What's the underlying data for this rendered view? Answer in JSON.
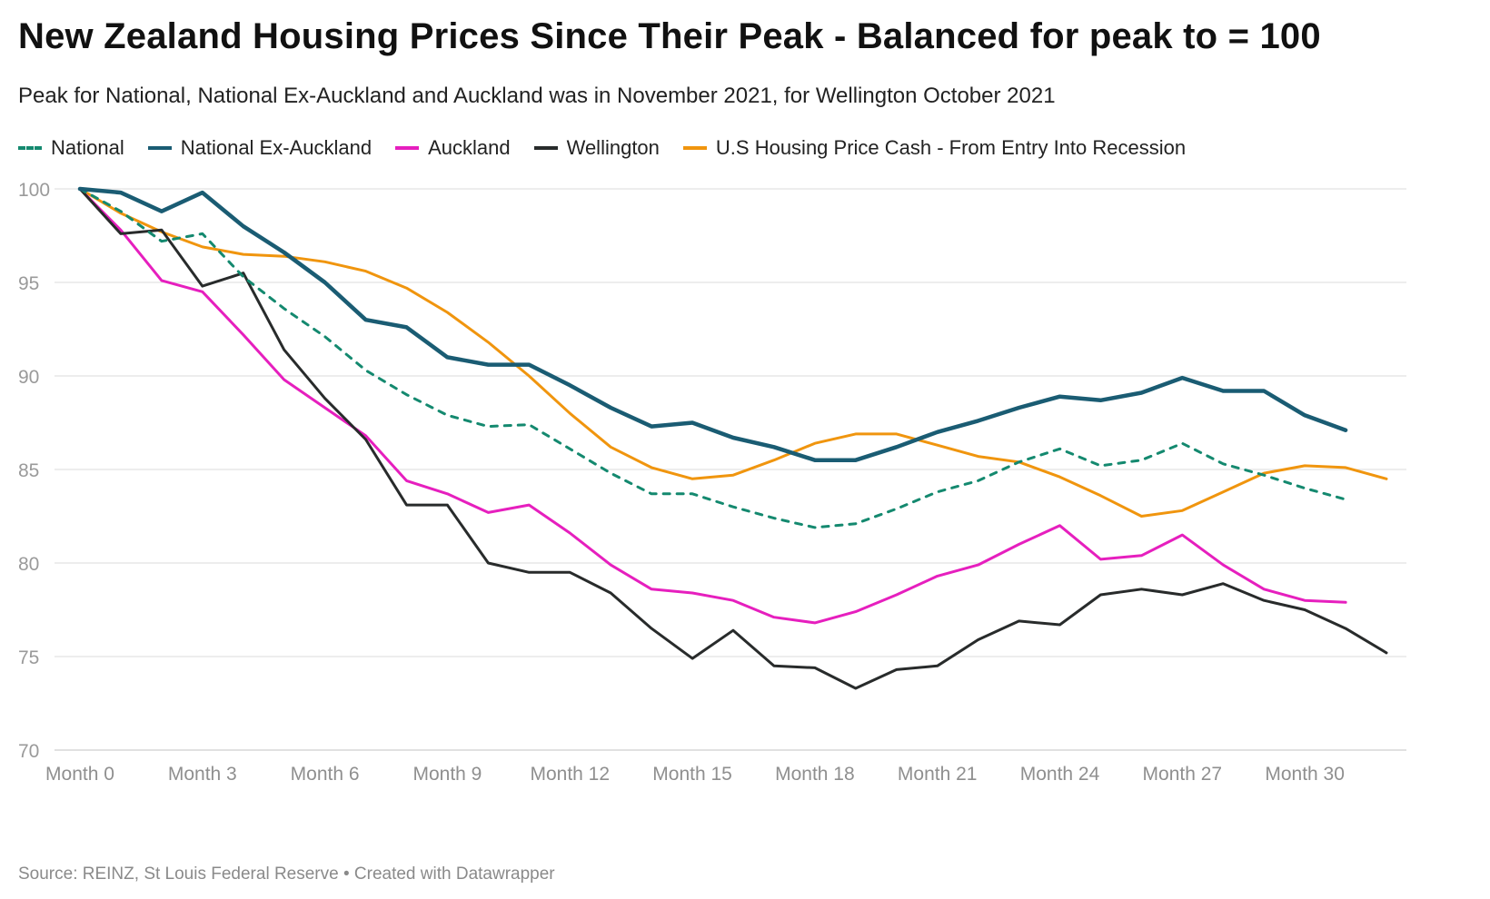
{
  "title": "New Zealand Housing Prices Since Their Peak - Balanced for peak to = 100",
  "subtitle": "Peak for National, National Ex-Auckland and Auckland was in November 2021, for Wellington October 2021",
  "source": "Source: REINZ, St Louis Federal Reserve • Created with Datawrapper",
  "chart_data": {
    "type": "line",
    "xlabel": "",
    "ylabel": "",
    "ylim": [
      70,
      100
    ],
    "yticks": [
      70,
      75,
      80,
      85,
      90,
      95,
      100
    ],
    "x": [
      0,
      1,
      2,
      3,
      4,
      5,
      6,
      7,
      8,
      9,
      10,
      11,
      12,
      13,
      14,
      15,
      16,
      17,
      18,
      19,
      20,
      21,
      22,
      23,
      24,
      25,
      26,
      27,
      28,
      29,
      30,
      31,
      32
    ],
    "xlim": [
      0,
      32
    ],
    "xticks": [
      {
        "x": 0,
        "label": "Month 0"
      },
      {
        "x": 3,
        "label": "Month 3"
      },
      {
        "x": 6,
        "label": "Month 6"
      },
      {
        "x": 9,
        "label": "Month 9"
      },
      {
        "x": 12,
        "label": "Month 12"
      },
      {
        "x": 15,
        "label": "Month 15"
      },
      {
        "x": 18,
        "label": "Month 18"
      },
      {
        "x": 21,
        "label": "Month 21"
      },
      {
        "x": 24,
        "label": "Month 24"
      },
      {
        "x": 27,
        "label": "Month 27"
      },
      {
        "x": 30,
        "label": "Month 30"
      }
    ],
    "grid": true,
    "legend_position": "top-left",
    "series": [
      {
        "name": "National",
        "color": "#14896f",
        "style": "dashed",
        "values": [
          100,
          98.8,
          97.2,
          97.6,
          95.3,
          93.6,
          92.1,
          90.3,
          89.0,
          87.9,
          87.3,
          87.4,
          86.1,
          84.8,
          83.7,
          83.7,
          83.0,
          82.4,
          81.9,
          82.1,
          82.9,
          83.8,
          84.4,
          85.4,
          86.1,
          85.2,
          85.5,
          86.4,
          85.3,
          84.7,
          84.0,
          83.4,
          null
        ]
      },
      {
        "name": "National Ex-Auckland",
        "color": "#1a5c73",
        "style": "solid",
        "values": [
          100,
          99.8,
          98.8,
          99.8,
          98.0,
          96.6,
          95.0,
          93.0,
          92.6,
          91.0,
          90.6,
          90.6,
          89.5,
          88.3,
          87.3,
          87.5,
          86.7,
          86.2,
          85.5,
          85.5,
          86.2,
          87.0,
          87.6,
          88.3,
          88.9,
          88.7,
          89.1,
          89.9,
          89.2,
          89.2,
          87.9,
          87.1,
          null
        ]
      },
      {
        "name": "Auckland",
        "color": "#e61fbe",
        "style": "solid",
        "values": [
          100,
          97.8,
          95.1,
          94.5,
          92.2,
          89.8,
          88.3,
          86.8,
          84.4,
          83.7,
          82.7,
          83.1,
          81.6,
          79.9,
          78.6,
          78.4,
          78.0,
          77.1,
          76.8,
          77.4,
          78.3,
          79.3,
          79.9,
          81.0,
          82.0,
          80.2,
          80.4,
          81.5,
          79.9,
          78.6,
          78.0,
          77.9,
          null
        ]
      },
      {
        "name": "Wellington",
        "color": "#282b2b",
        "style": "solid",
        "values": [
          100,
          97.6,
          97.8,
          94.8,
          95.5,
          91.4,
          88.8,
          86.6,
          83.1,
          83.1,
          80.0,
          79.5,
          79.5,
          78.4,
          76.5,
          74.9,
          76.4,
          74.5,
          74.4,
          73.3,
          74.3,
          74.5,
          75.9,
          76.9,
          76.7,
          78.3,
          78.6,
          78.3,
          78.9,
          78.0,
          77.5,
          76.5,
          75.2
        ]
      },
      {
        "name": "U.S Housing Price Cash - From Entry Into Recession",
        "color": "#f0950e",
        "style": "solid",
        "values": [
          100,
          98.7,
          97.7,
          96.9,
          96.5,
          96.4,
          96.1,
          95.6,
          94.7,
          93.4,
          91.8,
          90.0,
          88.0,
          86.2,
          85.1,
          84.5,
          84.7,
          85.5,
          86.4,
          86.9,
          86.9,
          86.3,
          85.7,
          85.4,
          84.6,
          83.6,
          82.5,
          82.8,
          83.8,
          84.8,
          85.2,
          85.1,
          84.5
        ]
      }
    ]
  }
}
